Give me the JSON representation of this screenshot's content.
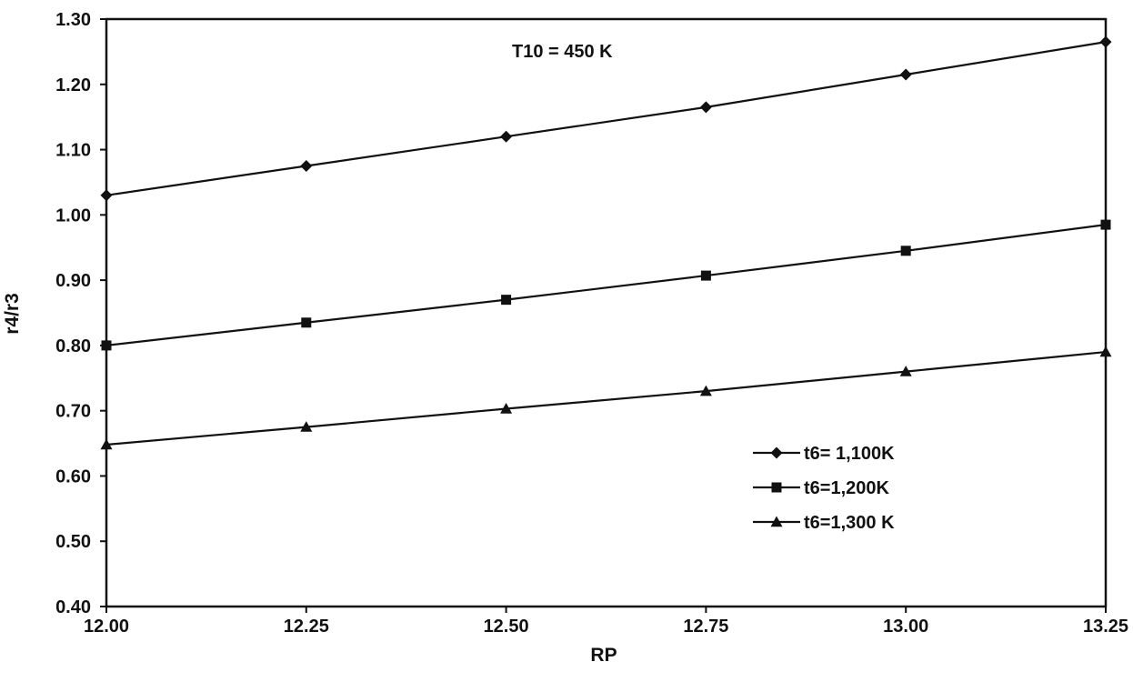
{
  "chart_data": {
    "type": "line",
    "title": "",
    "annotation": "T10 = 450 K",
    "xlabel": "RP",
    "ylabel": "r4/r3",
    "x": [
      12.0,
      12.25,
      12.5,
      12.75,
      13.0,
      13.25
    ],
    "x_tick_labels": [
      "12.00",
      "12.25",
      "12.50",
      "12.75",
      "13.00",
      "13.25"
    ],
    "y_tick_labels": [
      "0.40",
      "0.50",
      "0.60",
      "0.70",
      "0.80",
      "0.90",
      "1.00",
      "1.10",
      "1.20",
      "1.30"
    ],
    "xlim": [
      12.0,
      13.25
    ],
    "ylim": [
      0.4,
      1.3
    ],
    "grid": false,
    "legend_position": "bottom-right",
    "series": [
      {
        "name": "t6= 1,100K",
        "marker": "diamond",
        "values": [
          1.03,
          1.075,
          1.12,
          1.165,
          1.215,
          1.265
        ]
      },
      {
        "name": "t6=1,200K",
        "marker": "square",
        "values": [
          0.8,
          0.835,
          0.87,
          0.907,
          0.945,
          0.985
        ]
      },
      {
        "name": "t6=1,300 K",
        "marker": "triangle",
        "values": [
          0.648,
          0.675,
          0.703,
          0.73,
          0.76,
          0.79
        ]
      }
    ],
    "colors": {
      "line": "#111111",
      "background": "#ffffff"
    }
  }
}
